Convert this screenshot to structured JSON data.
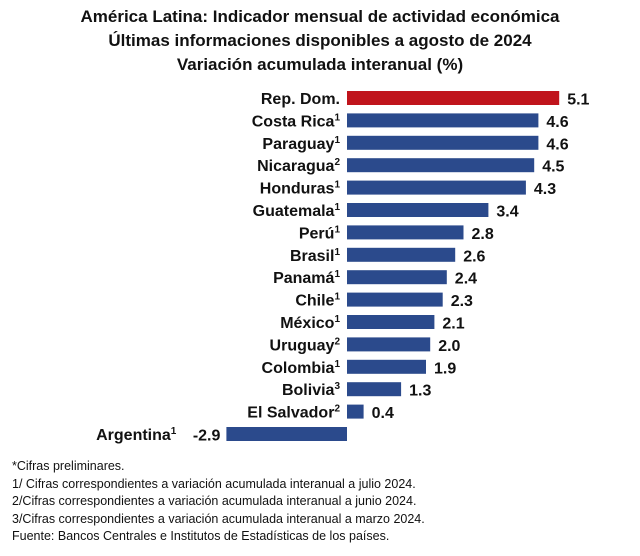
{
  "title_lines": [
    "América Latina: Indicador mensual de actividad económica",
    "Últimas informaciones disponibles a agosto de 2024",
    "Variación acumulada interanual (%)"
  ],
  "chart_data": {
    "type": "bar",
    "orientation": "horizontal",
    "categories": [
      {
        "name": "Rep. Dom.",
        "sup": ""
      },
      {
        "name": "Costa Rica",
        "sup": "1"
      },
      {
        "name": "Paraguay",
        "sup": "1"
      },
      {
        "name": "Nicaragua",
        "sup": "2"
      },
      {
        "name": "Honduras",
        "sup": "1"
      },
      {
        "name": "Guatemala",
        "sup": "1"
      },
      {
        "name": "Perú",
        "sup": "1"
      },
      {
        "name": "Brasil",
        "sup": "1"
      },
      {
        "name": "Panamá",
        "sup": "1"
      },
      {
        "name": "Chile",
        "sup": "1"
      },
      {
        "name": "México",
        "sup": "1"
      },
      {
        "name": "Uruguay",
        "sup": "2"
      },
      {
        "name": "Colombia",
        "sup": "1"
      },
      {
        "name": "Bolivia",
        "sup": "3"
      },
      {
        "name": "El Salvador",
        "sup": "2"
      },
      {
        "name": "Argentina",
        "sup": "1"
      }
    ],
    "values": [
      5.1,
      4.6,
      4.6,
      4.5,
      4.3,
      3.4,
      2.8,
      2.6,
      2.4,
      2.3,
      2.1,
      2.0,
      1.9,
      1.3,
      0.4,
      -2.9
    ],
    "value_labels": [
      "5.1",
      "4.6",
      "4.6",
      "4.5",
      "4.3",
      "3.4",
      "2.8",
      "2.6",
      "2.4",
      "2.3",
      "2.1",
      "2.0",
      "1.9",
      "1.3",
      "0.4",
      "-2.9"
    ],
    "highlight_index": 0,
    "colors": {
      "highlight": "#c0141c",
      "default": "#2b4a8c"
    },
    "grid": false,
    "legend": "none"
  },
  "notes": [
    "*Cifras preliminares.",
    "1/ Cifras correspondientes a variación acumulada interanual a julio 2024.",
    "2/Cifras correspondientes a variación acumulada interanual a junio 2024.",
    "3/Cifras correspondientes a variación acumulada interanual a marzo 2024.",
    "Fuente: Bancos Centrales e Institutos de Estadísticas de los países."
  ]
}
